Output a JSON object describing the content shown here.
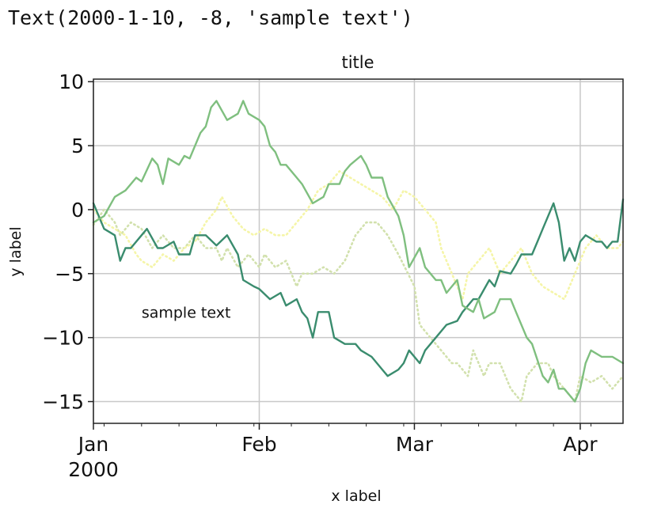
{
  "output": {
    "text": "Text(2000-1-10, -8, 'sample text')"
  },
  "chart_data": {
    "type": "line",
    "title": "title",
    "xlabel": "x label",
    "ylabel": "y label",
    "xlim": [
      "2000-01-01",
      "2000-04-09"
    ],
    "ylim": [
      -16.7,
      10.2
    ],
    "yticks": [
      10,
      5,
      0,
      -5,
      -10,
      -15
    ],
    "ytick_labels": [
      "10",
      "5",
      "0",
      "−5",
      "−10",
      "−15"
    ],
    "xticks": [
      {
        "date": "2000-01-01",
        "label": "Jan",
        "sublabel": "2000"
      },
      {
        "date": "2000-02-01",
        "label": "Feb"
      },
      {
        "date": "2000-03-01",
        "label": "Mar"
      },
      {
        "date": "2000-04-01",
        "label": "Apr"
      }
    ],
    "grid": true,
    "annotation": {
      "x": "2000-01-10",
      "y": -8,
      "text": "sample text"
    },
    "series": [
      {
        "style": "solid",
        "color": "#3a8c6e",
        "linewidth": 2.4,
        "points": [
          [
            "2000-01-01",
            0.5
          ],
          [
            "2000-01-03",
            -1.5
          ],
          [
            "2000-01-05",
            -2
          ],
          [
            "2000-01-06",
            -4
          ],
          [
            "2000-01-07",
            -3
          ],
          [
            "2000-01-08",
            -3
          ],
          [
            "2000-01-10",
            -2
          ],
          [
            "2000-01-11",
            -1.5
          ],
          [
            "2000-01-13",
            -3
          ],
          [
            "2000-01-14",
            -3
          ],
          [
            "2000-01-16",
            -2.5
          ],
          [
            "2000-01-17",
            -3.5
          ],
          [
            "2000-01-19",
            -3.5
          ],
          [
            "2000-01-20",
            -2
          ],
          [
            "2000-01-22",
            -2
          ],
          [
            "2000-01-24",
            -2.8
          ],
          [
            "2000-01-26",
            -2
          ],
          [
            "2000-01-28",
            -3.5
          ],
          [
            "2000-01-29",
            -5.5
          ],
          [
            "2000-01-31",
            -6
          ],
          [
            "2000-02-01",
            -6.2
          ],
          [
            "2000-02-03",
            -7
          ],
          [
            "2000-02-05",
            -6.5
          ],
          [
            "2000-02-06",
            -7.5
          ],
          [
            "2000-02-08",
            -7
          ],
          [
            "2000-02-09",
            -8
          ],
          [
            "2000-02-10",
            -8.5
          ],
          [
            "2000-02-11",
            -10
          ],
          [
            "2000-02-12",
            -8
          ],
          [
            "2000-02-14",
            -8
          ],
          [
            "2000-02-15",
            -10
          ],
          [
            "2000-02-17",
            -10.5
          ],
          [
            "2000-02-19",
            -10.5
          ],
          [
            "2000-02-20",
            -11
          ],
          [
            "2000-02-22",
            -11.5
          ],
          [
            "2000-02-24",
            -12.5
          ],
          [
            "2000-02-25",
            -13
          ],
          [
            "2000-02-27",
            -12.5
          ],
          [
            "2000-02-28",
            -12
          ],
          [
            "2000-02-29",
            -11
          ],
          [
            "2000-03-02",
            -12
          ],
          [
            "2000-03-03",
            -11
          ],
          [
            "2000-03-05",
            -10
          ],
          [
            "2000-03-07",
            -9
          ],
          [
            "2000-03-09",
            -8.7
          ],
          [
            "2000-03-10",
            -8
          ],
          [
            "2000-03-12",
            -7
          ],
          [
            "2000-03-13",
            -7
          ],
          [
            "2000-03-15",
            -5.5
          ],
          [
            "2000-03-16",
            -6
          ],
          [
            "2000-03-17",
            -4.8
          ],
          [
            "2000-03-19",
            -5
          ],
          [
            "2000-03-20",
            -4.3
          ],
          [
            "2000-03-21",
            -3.5
          ],
          [
            "2000-03-23",
            -3.5
          ],
          [
            "2000-03-24",
            -2.5
          ],
          [
            "2000-03-25",
            -1.5
          ],
          [
            "2000-03-27",
            0.5
          ],
          [
            "2000-03-28",
            -1
          ],
          [
            "2000-03-29",
            -4
          ],
          [
            "2000-03-30",
            -3
          ],
          [
            "2000-03-31",
            -4
          ],
          [
            "2000-04-01",
            -2.5
          ],
          [
            "2000-04-02",
            -2
          ],
          [
            "2000-04-04",
            -2.5
          ],
          [
            "2000-04-05",
            -2.5
          ],
          [
            "2000-04-06",
            -3
          ],
          [
            "2000-04-07",
            -2.5
          ],
          [
            "2000-04-08",
            -2.5
          ],
          [
            "2000-04-09",
            0.8
          ]
        ]
      },
      {
        "style": "solid",
        "color": "#7fbf7f",
        "linewidth": 2.4,
        "points": [
          [
            "2000-01-01",
            -1
          ],
          [
            "2000-01-03",
            -0.5
          ],
          [
            "2000-01-05",
            1
          ],
          [
            "2000-01-07",
            1.5
          ],
          [
            "2000-01-09",
            2.5
          ],
          [
            "2000-01-10",
            2.2
          ],
          [
            "2000-01-12",
            4
          ],
          [
            "2000-01-13",
            3.5
          ],
          [
            "2000-01-14",
            2
          ],
          [
            "2000-01-15",
            4
          ],
          [
            "2000-01-17",
            3.5
          ],
          [
            "2000-01-18",
            4.2
          ],
          [
            "2000-01-19",
            4
          ],
          [
            "2000-01-21",
            6
          ],
          [
            "2000-01-22",
            6.5
          ],
          [
            "2000-01-23",
            8
          ],
          [
            "2000-01-24",
            8.5
          ],
          [
            "2000-01-26",
            7
          ],
          [
            "2000-01-28",
            7.5
          ],
          [
            "2000-01-29",
            8.5
          ],
          [
            "2000-01-30",
            7.5
          ],
          [
            "2000-02-01",
            7
          ],
          [
            "2000-02-02",
            6.5
          ],
          [
            "2000-02-03",
            5
          ],
          [
            "2000-02-04",
            4.5
          ],
          [
            "2000-02-05",
            3.5
          ],
          [
            "2000-02-06",
            3.5
          ],
          [
            "2000-02-08",
            2.5
          ],
          [
            "2000-02-09",
            2
          ],
          [
            "2000-02-11",
            0.5
          ],
          [
            "2000-02-13",
            1
          ],
          [
            "2000-02-14",
            2
          ],
          [
            "2000-02-16",
            2
          ],
          [
            "2000-02-17",
            3
          ],
          [
            "2000-02-18",
            3.5
          ],
          [
            "2000-02-20",
            4.2
          ],
          [
            "2000-02-21",
            3.5
          ],
          [
            "2000-02-22",
            2.5
          ],
          [
            "2000-02-24",
            2.5
          ],
          [
            "2000-02-25",
            1
          ],
          [
            "2000-02-27",
            -0.5
          ],
          [
            "2000-02-28",
            -2
          ],
          [
            "2000-02-29",
            -4.5
          ],
          [
            "2000-03-02",
            -3
          ],
          [
            "2000-03-03",
            -4.5
          ],
          [
            "2000-03-05",
            -5.5
          ],
          [
            "2000-03-06",
            -5.5
          ],
          [
            "2000-03-07",
            -6.5
          ],
          [
            "2000-03-09",
            -5.5
          ],
          [
            "2000-03-10",
            -7.5
          ],
          [
            "2000-03-12",
            -8
          ],
          [
            "2000-03-13",
            -7
          ],
          [
            "2000-03-14",
            -8.5
          ],
          [
            "2000-03-16",
            -8
          ],
          [
            "2000-03-17",
            -7
          ],
          [
            "2000-03-19",
            -7
          ],
          [
            "2000-03-20",
            -8
          ],
          [
            "2000-03-22",
            -10
          ],
          [
            "2000-03-23",
            -10.5
          ],
          [
            "2000-03-25",
            -13
          ],
          [
            "2000-03-26",
            -13.5
          ],
          [
            "2000-03-27",
            -12.5
          ],
          [
            "2000-03-28",
            -14
          ],
          [
            "2000-03-29",
            -14
          ],
          [
            "2000-03-31",
            -15
          ],
          [
            "2000-04-01",
            -14
          ],
          [
            "2000-04-02",
            -12
          ],
          [
            "2000-04-03",
            -11
          ],
          [
            "2000-04-05",
            -11.5
          ],
          [
            "2000-04-07",
            -11.5
          ],
          [
            "2000-04-09",
            -12
          ]
        ]
      },
      {
        "style": "dotted",
        "color": "#d2e1ad",
        "linewidth": 2.6,
        "points": [
          [
            "2000-01-01",
            -1.2
          ],
          [
            "2000-01-03",
            0
          ],
          [
            "2000-01-05",
            -1
          ],
          [
            "2000-01-06",
            -2
          ],
          [
            "2000-01-08",
            -1
          ],
          [
            "2000-01-10",
            -1.5
          ],
          [
            "2000-01-12",
            -3
          ],
          [
            "2000-01-14",
            -2
          ],
          [
            "2000-01-16",
            -3
          ],
          [
            "2000-01-18",
            -3
          ],
          [
            "2000-01-20",
            -2
          ],
          [
            "2000-01-22",
            -3
          ],
          [
            "2000-01-24",
            -3
          ],
          [
            "2000-01-25",
            -4
          ],
          [
            "2000-01-26",
            -3
          ],
          [
            "2000-01-28",
            -4.5
          ],
          [
            "2000-01-30",
            -3.5
          ],
          [
            "2000-02-01",
            -4.5
          ],
          [
            "2000-02-02",
            -3.5
          ],
          [
            "2000-02-04",
            -4.5
          ],
          [
            "2000-02-06",
            -4
          ],
          [
            "2000-02-08",
            -6
          ],
          [
            "2000-02-09",
            -5
          ],
          [
            "2000-02-11",
            -5
          ],
          [
            "2000-02-13",
            -4.5
          ],
          [
            "2000-02-15",
            -5
          ],
          [
            "2000-02-17",
            -4
          ],
          [
            "2000-02-19",
            -2
          ],
          [
            "2000-02-21",
            -1
          ],
          [
            "2000-02-23",
            -1
          ],
          [
            "2000-02-25",
            -2
          ],
          [
            "2000-02-27",
            -3.5
          ],
          [
            "2000-03-01",
            -6
          ],
          [
            "2000-03-02",
            -9
          ],
          [
            "2000-03-04",
            -10
          ],
          [
            "2000-03-06",
            -11
          ],
          [
            "2000-03-08",
            -12
          ],
          [
            "2000-03-09",
            -12
          ],
          [
            "2000-03-11",
            -13
          ],
          [
            "2000-03-12",
            -11
          ],
          [
            "2000-03-14",
            -13
          ],
          [
            "2000-03-15",
            -12
          ],
          [
            "2000-03-17",
            -12
          ],
          [
            "2000-03-19",
            -14
          ],
          [
            "2000-03-21",
            -15
          ],
          [
            "2000-03-22",
            -13
          ],
          [
            "2000-03-24",
            -12
          ],
          [
            "2000-03-26",
            -12
          ],
          [
            "2000-03-27",
            -13
          ],
          [
            "2000-03-29",
            -14
          ],
          [
            "2000-03-31",
            -15
          ],
          [
            "2000-04-01",
            -13
          ],
          [
            "2000-04-03",
            -13.5
          ],
          [
            "2000-04-05",
            -13
          ],
          [
            "2000-04-07",
            -14
          ],
          [
            "2000-04-09",
            -13
          ]
        ]
      },
      {
        "style": "dotted",
        "color": "#f5f5a8",
        "linewidth": 2.6,
        "points": [
          [
            "2000-01-01",
            0
          ],
          [
            "2000-01-03",
            -1
          ],
          [
            "2000-01-05",
            -1.5
          ],
          [
            "2000-01-07",
            -2
          ],
          [
            "2000-01-09",
            -3.5
          ],
          [
            "2000-01-10",
            -4
          ],
          [
            "2000-01-12",
            -4.5
          ],
          [
            "2000-01-14",
            -3.5
          ],
          [
            "2000-01-16",
            -4
          ],
          [
            "2000-01-18",
            -3
          ],
          [
            "2000-01-20",
            -2.5
          ],
          [
            "2000-01-22",
            -1
          ],
          [
            "2000-01-24",
            0
          ],
          [
            "2000-01-25",
            1
          ],
          [
            "2000-01-27",
            -0.5
          ],
          [
            "2000-01-29",
            -1.5
          ],
          [
            "2000-01-31",
            -2
          ],
          [
            "2000-02-02",
            -1.5
          ],
          [
            "2000-02-04",
            -2
          ],
          [
            "2000-02-06",
            -2
          ],
          [
            "2000-02-08",
            -1
          ],
          [
            "2000-02-10",
            0
          ],
          [
            "2000-02-12",
            1.5
          ],
          [
            "2000-02-14",
            2
          ],
          [
            "2000-02-16",
            3
          ],
          [
            "2000-02-18",
            2.5
          ],
          [
            "2000-02-20",
            2
          ],
          [
            "2000-02-22",
            1.5
          ],
          [
            "2000-02-24",
            1
          ],
          [
            "2000-02-26",
            0
          ],
          [
            "2000-02-28",
            1.5
          ],
          [
            "2000-03-01",
            1
          ],
          [
            "2000-03-03",
            0
          ],
          [
            "2000-03-05",
            -1
          ],
          [
            "2000-03-06",
            -3
          ],
          [
            "2000-03-08",
            -5
          ],
          [
            "2000-03-10",
            -7
          ],
          [
            "2000-03-11",
            -5
          ],
          [
            "2000-03-13",
            -4
          ],
          [
            "2000-03-15",
            -3
          ],
          [
            "2000-03-17",
            -5
          ],
          [
            "2000-03-19",
            -4
          ],
          [
            "2000-03-21",
            -3
          ],
          [
            "2000-03-23",
            -5
          ],
          [
            "2000-03-25",
            -6
          ],
          [
            "2000-03-27",
            -6.5
          ],
          [
            "2000-03-29",
            -7
          ],
          [
            "2000-03-31",
            -5
          ],
          [
            "2000-04-02",
            -3
          ],
          [
            "2000-04-04",
            -2
          ],
          [
            "2000-04-06",
            -3
          ],
          [
            "2000-04-08",
            -3
          ],
          [
            "2000-04-09",
            -2.5
          ]
        ]
      }
    ]
  }
}
